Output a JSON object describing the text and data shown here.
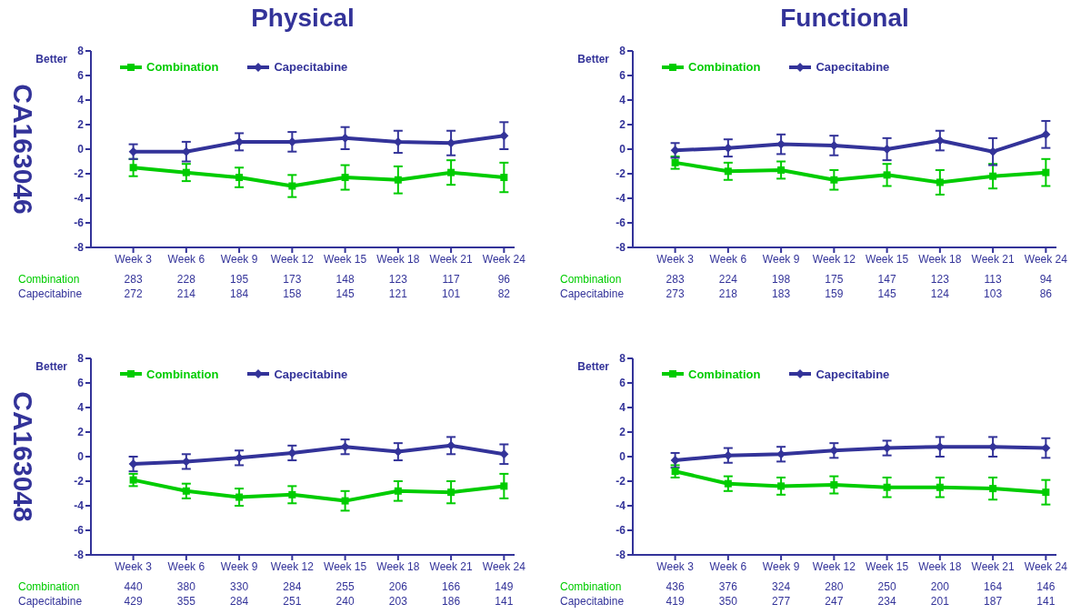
{
  "chart_data": [
    {
      "type": "line",
      "title": "Physical",
      "ylabel": "CA163046",
      "categories": [
        "Week 3",
        "Week 6",
        "Week 9",
        "Week 12",
        "Week 15",
        "Week 18",
        "Week 21",
        "Week 24"
      ],
      "ylim": [
        -8,
        8
      ],
      "yticks": [
        -8,
        -6,
        -4,
        -2,
        0,
        2,
        4,
        6,
        8
      ],
      "grid": false,
      "legend": "top left",
      "line_style": "solid",
      "series": [
        {
          "name": "Combination",
          "color": "#00cc00",
          "marker": "square",
          "values": [
            -1.5,
            -1.9,
            -2.3,
            -3.0,
            -2.3,
            -2.5,
            -1.9,
            -2.3
          ],
          "errors": [
            0.7,
            0.7,
            0.8,
            0.9,
            1.0,
            1.1,
            1.0,
            1.2
          ]
        },
        {
          "name": "Capecitabine",
          "color": "#333399",
          "marker": "diamond",
          "values": [
            -0.2,
            -0.2,
            0.6,
            0.6,
            0.9,
            0.6,
            0.5,
            1.1
          ],
          "errors": [
            0.6,
            0.8,
            0.7,
            0.8,
            0.9,
            0.9,
            1.0,
            1.1
          ]
        }
      ],
      "annotations": [
        "Better",
        "Combination",
        "283",
        "228",
        "195",
        "173",
        "148",
        "123",
        "117",
        "96",
        "Capecitabine",
        "272",
        "214",
        "184",
        "158",
        "145",
        "121",
        "101",
        "82"
      ]
    },
    {
      "type": "line",
      "title": "Functional",
      "categories": [
        "Week 3",
        "Week 6",
        "Week 9",
        "Week 12",
        "Week 15",
        "Week 18",
        "Week 21",
        "Week 24"
      ],
      "ylim": [
        -8,
        8
      ],
      "yticks": [
        -8,
        -6,
        -4,
        -2,
        0,
        2,
        4,
        6,
        8
      ],
      "grid": false,
      "legend": "top left",
      "line_style": "solid",
      "series": [
        {
          "name": "Combination",
          "color": "#00cc00",
          "marker": "square",
          "values": [
            -1.1,
            -1.8,
            -1.7,
            -2.5,
            -2.1,
            -2.7,
            -2.2,
            -1.9
          ],
          "errors": [
            0.5,
            0.7,
            0.7,
            0.8,
            0.9,
            1.0,
            1.0,
            1.1
          ]
        },
        {
          "name": "Capecitabine",
          "color": "#333399",
          "marker": "diamond",
          "values": [
            -0.1,
            0.1,
            0.4,
            0.3,
            0.0,
            0.7,
            -0.2,
            1.2
          ],
          "errors": [
            0.6,
            0.7,
            0.8,
            0.8,
            0.9,
            0.8,
            1.1,
            1.1
          ]
        }
      ],
      "annotations": [
        "Better",
        "Combination",
        "283",
        "224",
        "198",
        "175",
        "147",
        "123",
        "113",
        "94",
        "Capecitabine",
        "273",
        "218",
        "183",
        "159",
        "145",
        "124",
        "103",
        "86"
      ]
    },
    {
      "type": "line",
      "ylabel": "CA163048",
      "categories": [
        "Week 3",
        "Week 6",
        "Week 9",
        "Week 12",
        "Week 15",
        "Week 18",
        "Week 21",
        "Week 24"
      ],
      "ylim": [
        -8,
        8
      ],
      "yticks": [
        -8,
        -6,
        -4,
        -2,
        0,
        2,
        4,
        6,
        8
      ],
      "grid": false,
      "legend": "top left",
      "line_style": "solid",
      "series": [
        {
          "name": "Combination",
          "color": "#00cc00",
          "marker": "square",
          "values": [
            -1.9,
            -2.8,
            -3.3,
            -3.1,
            -3.6,
            -2.8,
            -2.9,
            -2.4
          ],
          "errors": [
            0.5,
            0.6,
            0.7,
            0.7,
            0.8,
            0.8,
            0.9,
            1.0
          ]
        },
        {
          "name": "Capecitabine",
          "color": "#333399",
          "marker": "diamond",
          "values": [
            -0.6,
            -0.4,
            -0.1,
            0.3,
            0.8,
            0.4,
            0.9,
            0.2
          ],
          "errors": [
            0.6,
            0.6,
            0.6,
            0.6,
            0.6,
            0.7,
            0.7,
            0.8
          ]
        }
      ],
      "annotations": [
        "Better",
        "Combination",
        "440",
        "380",
        "330",
        "284",
        "255",
        "206",
        "166",
        "149",
        "Capecitabine",
        "429",
        "355",
        "284",
        "251",
        "240",
        "203",
        "186",
        "141"
      ]
    },
    {
      "type": "line",
      "categories": [
        "Week 3",
        "Week 6",
        "Week 9",
        "Week 12",
        "Week 15",
        "Week 18",
        "Week 21",
        "Week 24"
      ],
      "ylim": [
        -8,
        8
      ],
      "yticks": [
        -8,
        -6,
        -4,
        -2,
        0,
        2,
        4,
        6,
        8
      ],
      "grid": false,
      "legend": "top left",
      "line_style": "solid",
      "series": [
        {
          "name": "Combination",
          "color": "#00cc00",
          "marker": "square",
          "values": [
            -1.2,
            -2.2,
            -2.4,
            -2.3,
            -2.5,
            -2.5,
            -2.6,
            -2.9
          ],
          "errors": [
            0.5,
            0.6,
            0.7,
            0.7,
            0.8,
            0.8,
            0.9,
            1.0
          ]
        },
        {
          "name": "Capecitabine",
          "color": "#333399",
          "marker": "diamond",
          "values": [
            -0.3,
            0.1,
            0.2,
            0.5,
            0.7,
            0.8,
            0.8,
            0.7
          ],
          "errors": [
            0.6,
            0.6,
            0.6,
            0.6,
            0.6,
            0.8,
            0.8,
            0.8
          ]
        }
      ],
      "annotations": [
        "Better",
        "Combination",
        "436",
        "376",
        "324",
        "280",
        "250",
        "200",
        "164",
        "146",
        "Capecitabine",
        "419",
        "350",
        "277",
        "247",
        "234",
        "201",
        "187",
        "141"
      ]
    }
  ]
}
